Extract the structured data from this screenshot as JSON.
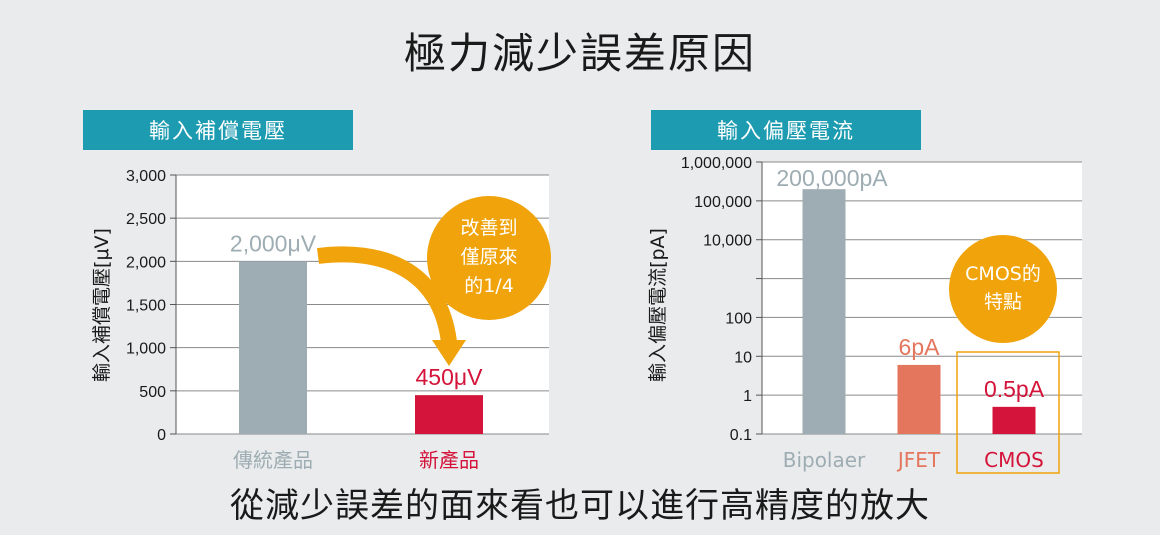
{
  "title": "極力減少誤差原因",
  "footer": "從減少誤差的面來看也可以進行高精度的放大",
  "chart_data": [
    {
      "type": "bar",
      "tag": "輸入補償電壓",
      "ylabel": "輸入補償電壓[μV]",
      "ylim": [
        0,
        3000
      ],
      "yticks": [
        "0",
        "500",
        "1,000",
        "1,500",
        "2,000",
        "2,500",
        "3,000"
      ],
      "categories": [
        "傳統產品",
        "新產品"
      ],
      "values": [
        2000,
        450
      ],
      "value_labels": [
        "2,000μV",
        "450μV"
      ],
      "colors": [
        "#9eadb3",
        "#d4143a"
      ],
      "label_colors": [
        "#9eadb3",
        "#d4143a"
      ],
      "callout": [
        "改善到",
        "僅原來",
        "的1/4"
      ],
      "callout_color": "#f0a30a"
    },
    {
      "type": "bar",
      "tag": "輸入偏壓電流",
      "ylabel": "輸入偏壓電流[pA]",
      "yscale": "log",
      "ylim": [
        0.1,
        1000000
      ],
      "yticks": [
        "0.1",
        "1",
        "10",
        "100",
        "10,000",
        "100,000",
        "1,000,000"
      ],
      "categories": [
        "Bipolaer",
        "JFET",
        "CMOS"
      ],
      "values": [
        200000,
        6,
        0.5
      ],
      "value_labels": [
        "200,000pA",
        "6pA",
        "0.5pA"
      ],
      "colors": [
        "#9eadb3",
        "#e4765d",
        "#d4143a"
      ],
      "label_colors": [
        "#9eadb3",
        "#e4765d",
        "#d4143a"
      ],
      "callout": [
        "CMOS的",
        "特點"
      ],
      "callout_color": "#f0a30a",
      "highlight_color": "#f0a30a"
    }
  ]
}
